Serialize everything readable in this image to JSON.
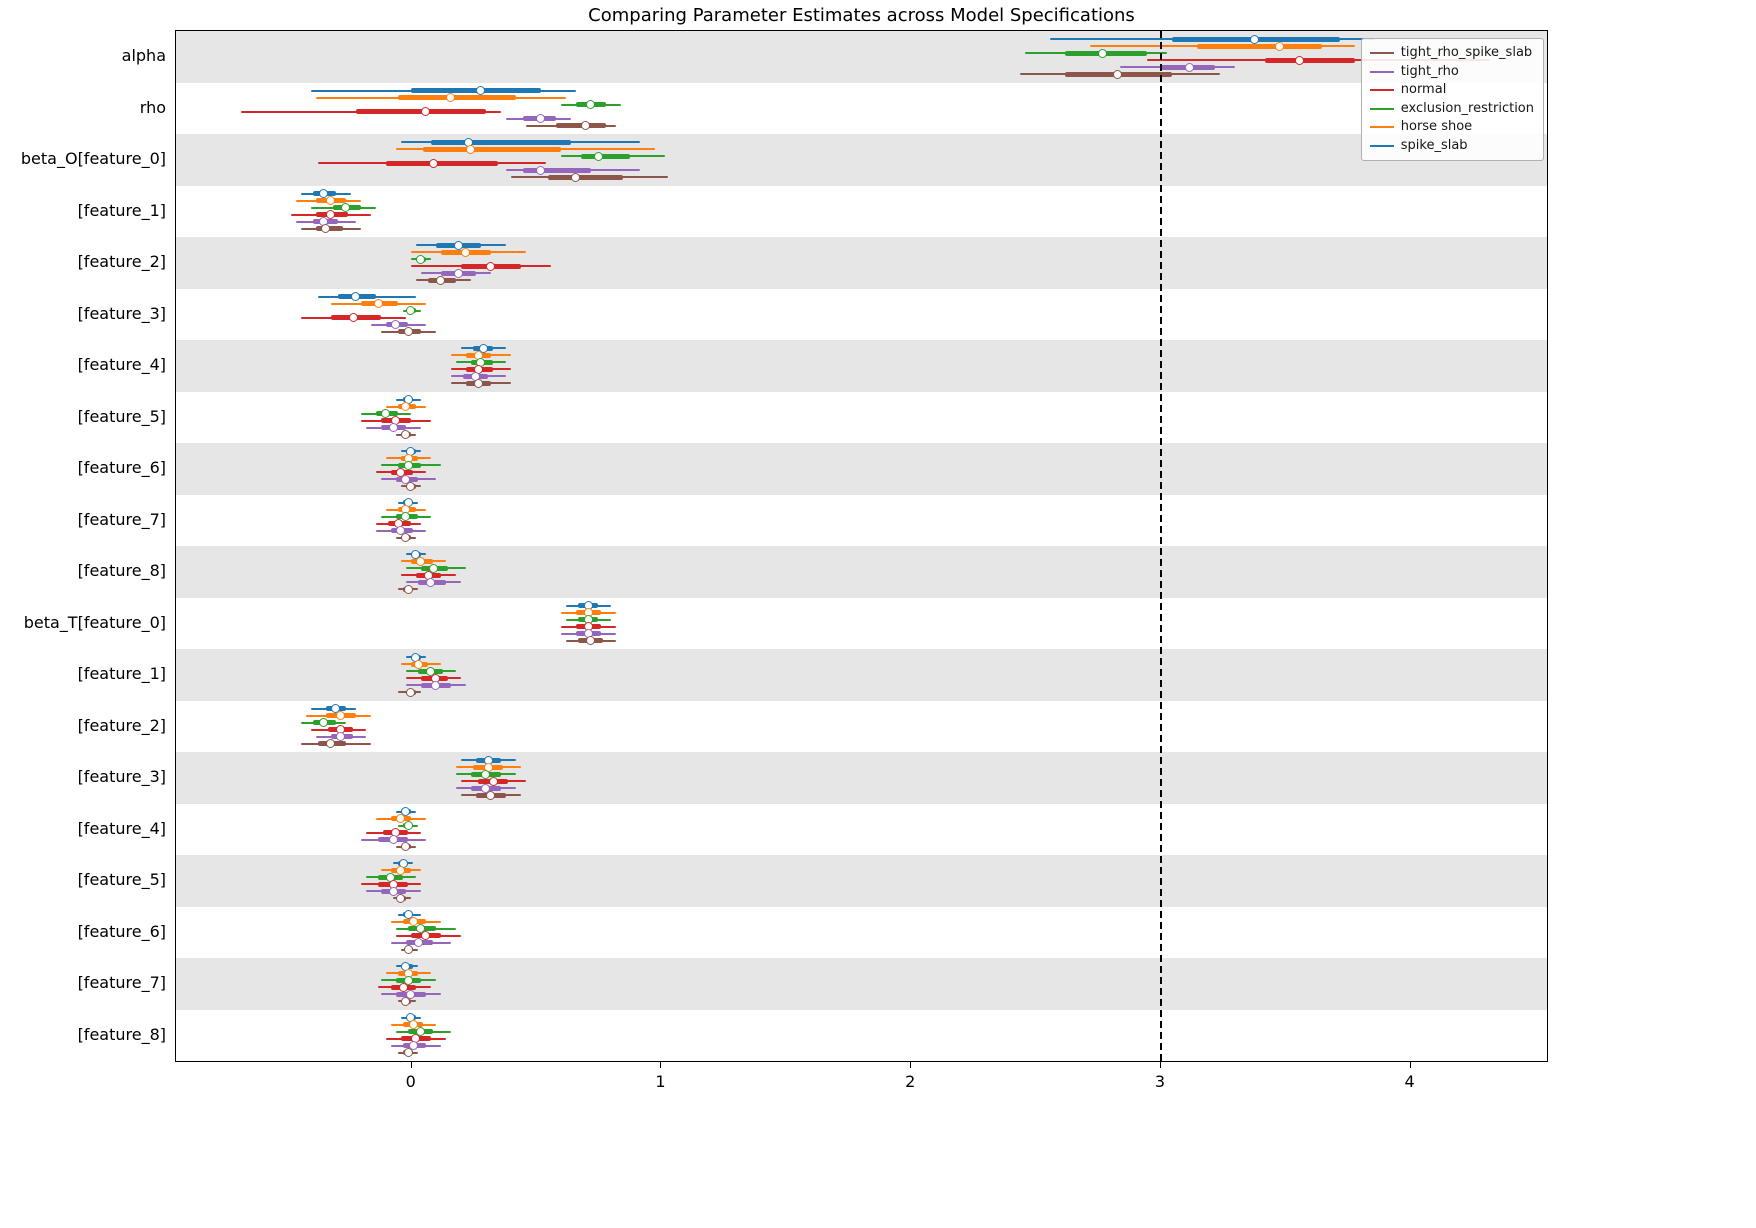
{
  "chart_data": {
    "type": "interval",
    "title": "Comparing Parameter Estimates across Model Specifications",
    "xlabel": "",
    "ylabel": "",
    "xlim": [
      -0.94,
      4.55
    ],
    "xticks": [
      0,
      1,
      2,
      3,
      4
    ],
    "reference_line_x": 3,
    "grid": false,
    "legend_position": "upper right",
    "band_shading": "alternating rows, first row shaded",
    "value_format": "[ci_low, inner_low, point, inner_high, ci_high]",
    "series_order": [
      "spike_slab",
      "horse_shoe",
      "exclusion_restriction",
      "normal",
      "tight_rho",
      "tight_rho_spike_slab"
    ],
    "series_colors": {
      "spike_slab": "#1f77b4",
      "horse_shoe": "#ff7f0e",
      "exclusion_restriction": "#2ca02c",
      "normal": "#d62728",
      "tight_rho": "#9467bd",
      "tight_rho_spike_slab": "#8c564b"
    },
    "rows": [
      {
        "label": "alpha",
        "intervals": {
          "spike_slab": [
            2.56,
            3.05,
            3.38,
            3.72,
            3.86
          ],
          "horse_shoe": [
            2.72,
            3.15,
            3.48,
            3.65,
            3.78
          ],
          "exclusion_restriction": [
            2.46,
            2.62,
            2.77,
            2.95,
            3.03
          ],
          "normal": [
            2.95,
            3.42,
            3.56,
            3.78,
            4.32
          ],
          "tight_rho": [
            2.84,
            3.0,
            3.12,
            3.22,
            3.3
          ],
          "tight_rho_spike_slab": [
            2.44,
            2.62,
            2.83,
            3.05,
            3.24
          ]
        }
      },
      {
        "label": "rho",
        "intervals": {
          "spike_slab": [
            -0.4,
            0.0,
            0.28,
            0.52,
            0.66
          ],
          "horse_shoe": [
            -0.38,
            -0.05,
            0.16,
            0.42,
            0.62
          ],
          "exclusion_restriction": [
            0.6,
            0.66,
            0.72,
            0.78,
            0.84
          ],
          "normal": [
            -0.68,
            -0.22,
            0.06,
            0.3,
            0.36
          ],
          "tight_rho": [
            0.38,
            0.45,
            0.52,
            0.58,
            0.64
          ],
          "tight_rho_spike_slab": [
            0.46,
            0.58,
            0.7,
            0.78,
            0.82
          ]
        }
      },
      {
        "label": "beta_O[feature_0]",
        "intervals": {
          "spike_slab": [
            -0.04,
            0.08,
            0.23,
            0.64,
            0.92
          ],
          "horse_shoe": [
            -0.06,
            0.05,
            0.24,
            0.6,
            0.98
          ],
          "exclusion_restriction": [
            0.6,
            0.68,
            0.75,
            0.88,
            1.02
          ],
          "normal": [
            -0.37,
            -0.1,
            0.09,
            0.35,
            0.54
          ],
          "tight_rho": [
            0.38,
            0.45,
            0.52,
            0.72,
            0.92
          ],
          "tight_rho_spike_slab": [
            0.4,
            0.55,
            0.66,
            0.85,
            1.03
          ]
        }
      },
      {
        "label": "[feature_1]",
        "intervals": {
          "spike_slab": [
            -0.44,
            -0.39,
            -0.35,
            -0.3,
            -0.24
          ],
          "horse_shoe": [
            -0.46,
            -0.38,
            -0.32,
            -0.26,
            -0.2
          ],
          "exclusion_restriction": [
            -0.4,
            -0.31,
            -0.26,
            -0.2,
            -0.14
          ],
          "normal": [
            -0.48,
            -0.38,
            -0.32,
            -0.25,
            -0.16
          ],
          "tight_rho": [
            -0.46,
            -0.39,
            -0.35,
            -0.29,
            -0.22
          ],
          "tight_rho_spike_slab": [
            -0.44,
            -0.38,
            -0.34,
            -0.27,
            -0.2
          ]
        }
      },
      {
        "label": "[feature_2]",
        "intervals": {
          "spike_slab": [
            0.02,
            0.1,
            0.19,
            0.28,
            0.38
          ],
          "horse_shoe": [
            0.0,
            0.12,
            0.22,
            0.32,
            0.46
          ],
          "exclusion_restriction": [
            0.0,
            0.02,
            0.04,
            0.06,
            0.08
          ],
          "normal": [
            0.0,
            0.2,
            0.32,
            0.44,
            0.56
          ],
          "tight_rho": [
            0.04,
            0.12,
            0.19,
            0.26,
            0.32
          ],
          "tight_rho_spike_slab": [
            0.02,
            0.07,
            0.12,
            0.18,
            0.24
          ]
        }
      },
      {
        "label": "[feature_3]",
        "intervals": {
          "spike_slab": [
            -0.37,
            -0.29,
            -0.22,
            -0.14,
            0.02
          ],
          "horse_shoe": [
            -0.32,
            -0.2,
            -0.13,
            -0.05,
            0.06
          ],
          "exclusion_restriction": [
            -0.03,
            -0.01,
            0.0,
            0.02,
            0.04
          ],
          "normal": [
            -0.44,
            -0.32,
            -0.23,
            -0.12,
            -0.02
          ],
          "tight_rho": [
            -0.16,
            -0.1,
            -0.06,
            -0.01,
            0.06
          ],
          "tight_rho_spike_slab": [
            -0.12,
            -0.05,
            -0.01,
            0.04,
            0.1
          ]
        }
      },
      {
        "label": "[feature_4]",
        "intervals": {
          "spike_slab": [
            0.2,
            0.25,
            0.29,
            0.33,
            0.38
          ],
          "horse_shoe": [
            0.16,
            0.22,
            0.27,
            0.32,
            0.4
          ],
          "exclusion_restriction": [
            0.18,
            0.24,
            0.28,
            0.33,
            0.38
          ],
          "normal": [
            0.16,
            0.22,
            0.27,
            0.33,
            0.4
          ],
          "tight_rho": [
            0.16,
            0.21,
            0.26,
            0.31,
            0.38
          ],
          "tight_rho_spike_slab": [
            0.16,
            0.22,
            0.27,
            0.32,
            0.4
          ]
        }
      },
      {
        "label": "[feature_5]",
        "intervals": {
          "spike_slab": [
            -0.06,
            -0.03,
            -0.01,
            0.01,
            0.04
          ],
          "horse_shoe": [
            -0.1,
            -0.05,
            -0.02,
            0.02,
            0.06
          ],
          "exclusion_restriction": [
            -0.2,
            -0.14,
            -0.1,
            -0.05,
            0.0
          ],
          "normal": [
            -0.2,
            -0.12,
            -0.06,
            0.0,
            0.08
          ],
          "tight_rho": [
            -0.18,
            -0.12,
            -0.07,
            -0.02,
            0.04
          ],
          "tight_rho_spike_slab": [
            -0.06,
            -0.04,
            -0.02,
            0.0,
            0.02
          ]
        }
      },
      {
        "label": "[feature_6]",
        "intervals": {
          "spike_slab": [
            -0.04,
            -0.02,
            0.0,
            0.02,
            0.04
          ],
          "horse_shoe": [
            -0.1,
            -0.04,
            -0.01,
            0.03,
            0.08
          ],
          "exclusion_restriction": [
            -0.12,
            -0.05,
            -0.01,
            0.04,
            0.12
          ],
          "normal": [
            -0.14,
            -0.08,
            -0.04,
            0.01,
            0.06
          ],
          "tight_rho": [
            -0.12,
            -0.06,
            -0.02,
            0.03,
            0.1
          ],
          "tight_rho_spike_slab": [
            -0.04,
            -0.02,
            0.0,
            0.02,
            0.04
          ]
        }
      },
      {
        "label": "[feature_7]",
        "intervals": {
          "spike_slab": [
            -0.05,
            -0.03,
            -0.01,
            0.01,
            0.03
          ],
          "horse_shoe": [
            -0.1,
            -0.05,
            -0.02,
            0.02,
            0.06
          ],
          "exclusion_restriction": [
            -0.12,
            -0.06,
            -0.02,
            0.03,
            0.08
          ],
          "normal": [
            -0.14,
            -0.09,
            -0.05,
            0.0,
            0.04
          ],
          "tight_rho": [
            -0.14,
            -0.08,
            -0.04,
            0.01,
            0.06
          ],
          "tight_rho_spike_slab": [
            -0.06,
            -0.04,
            -0.02,
            0.0,
            0.02
          ]
        }
      },
      {
        "label": "[feature_8]",
        "intervals": {
          "spike_slab": [
            -0.02,
            0.0,
            0.02,
            0.04,
            0.06
          ],
          "horse_shoe": [
            -0.04,
            0.0,
            0.04,
            0.09,
            0.14
          ],
          "exclusion_restriction": [
            -0.02,
            0.04,
            0.09,
            0.15,
            0.22
          ],
          "normal": [
            -0.04,
            0.02,
            0.07,
            0.12,
            0.18
          ],
          "tight_rho": [
            -0.02,
            0.03,
            0.08,
            0.14,
            0.2
          ],
          "tight_rho_spike_slab": [
            -0.05,
            -0.03,
            -0.01,
            0.01,
            0.03
          ]
        }
      },
      {
        "label": "beta_T[feature_0]",
        "intervals": {
          "spike_slab": [
            0.62,
            0.67,
            0.71,
            0.75,
            0.8
          ],
          "horse_shoe": [
            0.6,
            0.66,
            0.71,
            0.76,
            0.82
          ],
          "exclusion_restriction": [
            0.62,
            0.67,
            0.71,
            0.75,
            0.8
          ],
          "normal": [
            0.6,
            0.66,
            0.71,
            0.76,
            0.82
          ],
          "tight_rho": [
            0.6,
            0.66,
            0.71,
            0.76,
            0.82
          ],
          "tight_rho_spike_slab": [
            0.62,
            0.67,
            0.72,
            0.77,
            0.82
          ]
        }
      },
      {
        "label": "[feature_1]",
        "intervals": {
          "spike_slab": [
            -0.02,
            0.0,
            0.02,
            0.04,
            0.06
          ],
          "horse_shoe": [
            -0.04,
            0.0,
            0.03,
            0.07,
            0.12
          ],
          "exclusion_restriction": [
            -0.02,
            0.03,
            0.08,
            0.13,
            0.18
          ],
          "normal": [
            -0.02,
            0.04,
            0.1,
            0.15,
            0.2
          ],
          "tight_rho": [
            -0.02,
            0.04,
            0.1,
            0.16,
            0.22
          ],
          "tight_rho_spike_slab": [
            -0.05,
            -0.02,
            0.0,
            0.02,
            0.04
          ]
        }
      },
      {
        "label": "[feature_2]",
        "intervals": {
          "spike_slab": [
            -0.4,
            -0.34,
            -0.3,
            -0.26,
            -0.22
          ],
          "horse_shoe": [
            -0.42,
            -0.34,
            -0.28,
            -0.22,
            -0.16
          ],
          "exclusion_restriction": [
            -0.44,
            -0.39,
            -0.35,
            -0.3,
            -0.26
          ],
          "normal": [
            -0.4,
            -0.33,
            -0.28,
            -0.23,
            -0.18
          ],
          "tight_rho": [
            -0.38,
            -0.32,
            -0.28,
            -0.23,
            -0.18
          ],
          "tight_rho_spike_slab": [
            -0.44,
            -0.37,
            -0.32,
            -0.26,
            -0.16
          ]
        }
      },
      {
        "label": "[feature_3]",
        "intervals": {
          "spike_slab": [
            0.2,
            0.26,
            0.31,
            0.36,
            0.42
          ],
          "horse_shoe": [
            0.18,
            0.25,
            0.31,
            0.37,
            0.44
          ],
          "exclusion_restriction": [
            0.18,
            0.24,
            0.3,
            0.36,
            0.42
          ],
          "normal": [
            0.2,
            0.27,
            0.33,
            0.39,
            0.46
          ],
          "tight_rho": [
            0.18,
            0.24,
            0.3,
            0.36,
            0.42
          ],
          "tight_rho_spike_slab": [
            0.2,
            0.26,
            0.32,
            0.38,
            0.44
          ]
        }
      },
      {
        "label": "[feature_4]",
        "intervals": {
          "spike_slab": [
            -0.06,
            -0.04,
            -0.02,
            0.0,
            0.02
          ],
          "horse_shoe": [
            -0.14,
            -0.08,
            -0.04,
            0.0,
            0.06
          ],
          "exclusion_restriction": [
            -0.05,
            -0.03,
            -0.01,
            0.01,
            0.03
          ],
          "normal": [
            -0.18,
            -0.11,
            -0.06,
            -0.01,
            0.04
          ],
          "tight_rho": [
            -0.2,
            -0.13,
            -0.07,
            -0.01,
            0.06
          ],
          "tight_rho_spike_slab": [
            -0.06,
            -0.04,
            -0.02,
            0.0,
            0.02
          ]
        }
      },
      {
        "label": "[feature_5]",
        "intervals": {
          "spike_slab": [
            -0.07,
            -0.05,
            -0.03,
            -0.01,
            0.01
          ],
          "horse_shoe": [
            -0.12,
            -0.08,
            -0.04,
            0.0,
            0.04
          ],
          "exclusion_restriction": [
            -0.18,
            -0.13,
            -0.08,
            -0.03,
            0.02
          ],
          "normal": [
            -0.2,
            -0.13,
            -0.07,
            -0.01,
            0.04
          ],
          "tight_rho": [
            -0.18,
            -0.12,
            -0.07,
            -0.02,
            0.04
          ],
          "tight_rho_spike_slab": [
            -0.07,
            -0.05,
            -0.04,
            -0.02,
            0.0
          ]
        }
      },
      {
        "label": "[feature_6]",
        "intervals": {
          "spike_slab": [
            -0.05,
            -0.03,
            -0.01,
            0.01,
            0.04
          ],
          "horse_shoe": [
            -0.08,
            -0.03,
            0.01,
            0.06,
            0.12
          ],
          "exclusion_restriction": [
            -0.06,
            -0.01,
            0.04,
            0.1,
            0.18
          ],
          "normal": [
            -0.06,
            0.0,
            0.06,
            0.12,
            0.2
          ],
          "tight_rho": [
            -0.08,
            -0.02,
            0.03,
            0.09,
            0.16
          ],
          "tight_rho_spike_slab": [
            -0.04,
            -0.02,
            -0.01,
            0.01,
            0.03
          ]
        }
      },
      {
        "label": "[feature_7]",
        "intervals": {
          "spike_slab": [
            -0.06,
            -0.04,
            -0.02,
            0.01,
            0.03
          ],
          "horse_shoe": [
            -0.1,
            -0.05,
            -0.01,
            0.03,
            0.08
          ],
          "exclusion_restriction": [
            -0.12,
            -0.06,
            -0.01,
            0.04,
            0.1
          ],
          "normal": [
            -0.13,
            -0.08,
            -0.03,
            0.02,
            0.08
          ],
          "tight_rho": [
            -0.12,
            -0.06,
            0.0,
            0.06,
            0.12
          ],
          "tight_rho_spike_slab": [
            -0.05,
            -0.03,
            -0.02,
            0.0,
            0.02
          ]
        }
      },
      {
        "label": "[feature_8]",
        "intervals": {
          "spike_slab": [
            -0.04,
            -0.02,
            0.0,
            0.02,
            0.04
          ],
          "horse_shoe": [
            -0.08,
            -0.03,
            0.01,
            0.05,
            0.1
          ],
          "exclusion_restriction": [
            -0.06,
            -0.01,
            0.04,
            0.09,
            0.16
          ],
          "normal": [
            -0.1,
            -0.04,
            0.02,
            0.08,
            0.14
          ],
          "tight_rho": [
            -0.08,
            -0.03,
            0.01,
            0.06,
            0.12
          ],
          "tight_rho_spike_slab": [
            -0.05,
            -0.03,
            -0.01,
            0.01,
            0.03
          ]
        }
      }
    ]
  },
  "legend": {
    "items": [
      {
        "label": "tight_rho_spike_slab",
        "color": "#8c564b"
      },
      {
        "label": "tight_rho",
        "color": "#9467bd"
      },
      {
        "label": "normal",
        "color": "#d62728"
      },
      {
        "label": "exclusion_restriction",
        "color": "#2ca02c"
      },
      {
        "label": "horse shoe",
        "color": "#ff7f0e"
      },
      {
        "label": "spike_slab",
        "color": "#1f77b4"
      }
    ]
  },
  "colors": {
    "background": "#ffffff",
    "band_shaded": "#e6e6e6",
    "axis": "#000000",
    "reference_line": "#000000"
  }
}
